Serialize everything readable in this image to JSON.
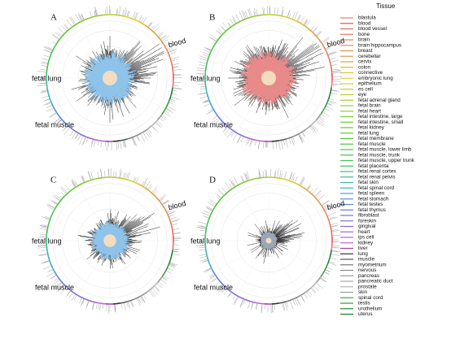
{
  "panels": [
    {
      "label": "A",
      "annotations": [
        "blood",
        "fetal lung",
        "fetal muscle"
      ]
    },
    {
      "label": "B",
      "annotations": [
        "blood",
        "fetal lung",
        "fetal muscle"
      ]
    },
    {
      "label": "C",
      "annotations": [
        "blood",
        "fetal lung",
        "fetal muscle"
      ]
    },
    {
      "label": "D",
      "annotations": [
        "blood",
        "fetal lung",
        "fetal muscle"
      ]
    }
  ],
  "legend": {
    "title": "Tissue",
    "items": [
      {
        "name": "blastula",
        "color": "hsl(0,70%,68%)"
      },
      {
        "name": "blood",
        "color": "hsl(3,75%,60%)"
      },
      {
        "name": "blood vessel",
        "color": "hsl(8,70%,62%)"
      },
      {
        "name": "bone",
        "color": "hsl(13,70%,62%)"
      },
      {
        "name": "brain",
        "color": "hsl(18,70%,62%)"
      },
      {
        "name": "brain hippocampus",
        "color": "hsl(23,70%,62%)"
      },
      {
        "name": "breast",
        "color": "hsl(28,70%,60%)"
      },
      {
        "name": "cerebellar",
        "color": "hsl(33,70%,58%)"
      },
      {
        "name": "cervix",
        "color": "hsl(38,70%,56%)"
      },
      {
        "name": "colon",
        "color": "hsl(43,70%,55%)"
      },
      {
        "name": "connective",
        "color": "hsl(48,72%,55%)"
      },
      {
        "name": "embryonic lung",
        "color": "hsl(53,72%,55%)"
      },
      {
        "name": "epithelium",
        "color": "hsl(58,65%,52%)"
      },
      {
        "name": "es cell",
        "color": "hsl(63,60%,50%)"
      },
      {
        "name": "eye",
        "color": "hsl(68,60%,50%)"
      },
      {
        "name": "fetal adrenal gland",
        "color": "hsl(73,60%,50%)"
      },
      {
        "name": "fetal brain",
        "color": "hsl(78,58%,50%)"
      },
      {
        "name": "fetal heart",
        "color": "hsl(83,58%,50%)"
      },
      {
        "name": "fetal intestine, large",
        "color": "hsl(88,55%,50%)"
      },
      {
        "name": "fetal intestine, small",
        "color": "hsl(93,55%,50%)"
      },
      {
        "name": "fetal kidney",
        "color": "hsl(98,55%,50%)"
      },
      {
        "name": "fetal lung",
        "color": "hsl(103,55%,50%)"
      },
      {
        "name": "fetal membrane",
        "color": "hsl(108,55%,50%)"
      },
      {
        "name": "fetal muscle",
        "color": "hsl(113,55%,50%)"
      },
      {
        "name": "fetal muscle, lower limb",
        "color": "hsl(118,50%,52%)"
      },
      {
        "name": "fetal muscle, trunk",
        "color": "hsl(123,50%,52%)"
      },
      {
        "name": "fetal muscle, upper trunk",
        "color": "hsl(128,50%,52%)"
      },
      {
        "name": "fetal placenta",
        "color": "hsl(133,50%,50%)"
      },
      {
        "name": "fetal renal cortex",
        "color": "hsl(145,50%,50%)"
      },
      {
        "name": "fetal renal pelvis",
        "color": "hsl(160,50%,48%)"
      },
      {
        "name": "fetal skin",
        "color": "hsl(175,50%,48%)"
      },
      {
        "name": "fetal spinal cord",
        "color": "hsl(190,55%,50%)"
      },
      {
        "name": "fetal spleen",
        "color": "hsl(200,60%,55%)"
      },
      {
        "name": "fetal stomach",
        "color": "hsl(210,60%,58%)"
      },
      {
        "name": "fetal testes",
        "color": "hsl(220,60%,60%)"
      },
      {
        "name": "fetal thymus",
        "color": "hsl(230,60%,62%)"
      },
      {
        "name": "fibroblast",
        "color": "hsl(240,55%,64%)"
      },
      {
        "name": "foreskin",
        "color": "hsl(250,55%,64%)"
      },
      {
        "name": "gingival",
        "color": "hsl(260,55%,62%)"
      },
      {
        "name": "heart",
        "color": "hsl(270,55%,62%)"
      },
      {
        "name": "ips cell",
        "color": "hsl(280,55%,62%)"
      },
      {
        "name": "kidney",
        "color": "hsl(290,50%,60%)"
      },
      {
        "name": "liver",
        "color": "hsl(300,45%,45%)"
      },
      {
        "name": "lung",
        "color": "#333333"
      },
      {
        "name": "muscle",
        "color": "#555555"
      },
      {
        "name": "myometrium",
        "color": "#777777"
      },
      {
        "name": "nervous",
        "color": "#8a8a8a"
      },
      {
        "name": "pancreas",
        "color": "#9a9a9a"
      },
      {
        "name": "pancreatic duct",
        "color": "#a8a8a8"
      },
      {
        "name": "prostate",
        "color": "#b5b5b5"
      },
      {
        "name": "skin",
        "color": "#999999"
      },
      {
        "name": "spinal cord",
        "color": "hsl(120,45%,45%)"
      },
      {
        "name": "testis",
        "color": "hsl(125,50%,40%)"
      },
      {
        "name": "urothelium",
        "color": "hsl(130,55%,35%)"
      },
      {
        "name": "uterus",
        "color": "hsl(135,60%,30%)"
      }
    ]
  }
}
